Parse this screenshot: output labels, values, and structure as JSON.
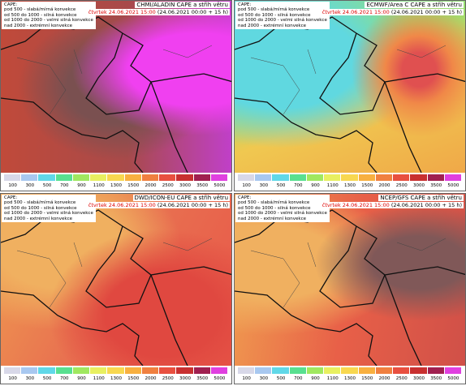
{
  "legend": {
    "lines": [
      "CAPE:",
      "pod 500 - slabá/mírná konvekce",
      "od 500 do 1000 - silná konvekce",
      "od 1000 do 2000 - velmi silná konvekce",
      "nad 2000 - extrémní konvekce"
    ]
  },
  "panels": [
    {
      "title": "CHMI/ALADIN CAPE a střih větru",
      "date": "čtvrtek 24.06.2021 15:00",
      "run": "(24.06.2021 00:00 + 15 h)"
    },
    {
      "title": "ECMWF/Area C CAPE a střih větru",
      "date": "čtvrtek 24.06.2021 15:00",
      "run": "(24.06.2021 00:00 + 15 h)"
    },
    {
      "title": "DWD/ICON-EU CAPE a střih větru",
      "date": "čtvrtek 24.06.2021 15:00",
      "run": "(24.06.2021 00:00 + 15 h)"
    },
    {
      "title": "NCEP/GFS CAPE a střih větru",
      "date": "čtvrtek 24.06.2021 15:00",
      "run": "(24.06.2021 00:00 + 15 h)"
    }
  ],
  "colorbar": {
    "ticks": [
      100,
      300,
      500,
      700,
      900,
      1100,
      1300,
      1500,
      2000,
      2500,
      3000,
      3500,
      5000
    ],
    "colors": [
      "#d8d8e8",
      "#a8c8f0",
      "#60d8e8",
      "#58e090",
      "#a0e860",
      "#e8f060",
      "#f8d850",
      "#f8b040",
      "#f08040",
      "#e85040",
      "#c83030",
      "#a02050",
      "#e040e0"
    ]
  }
}
